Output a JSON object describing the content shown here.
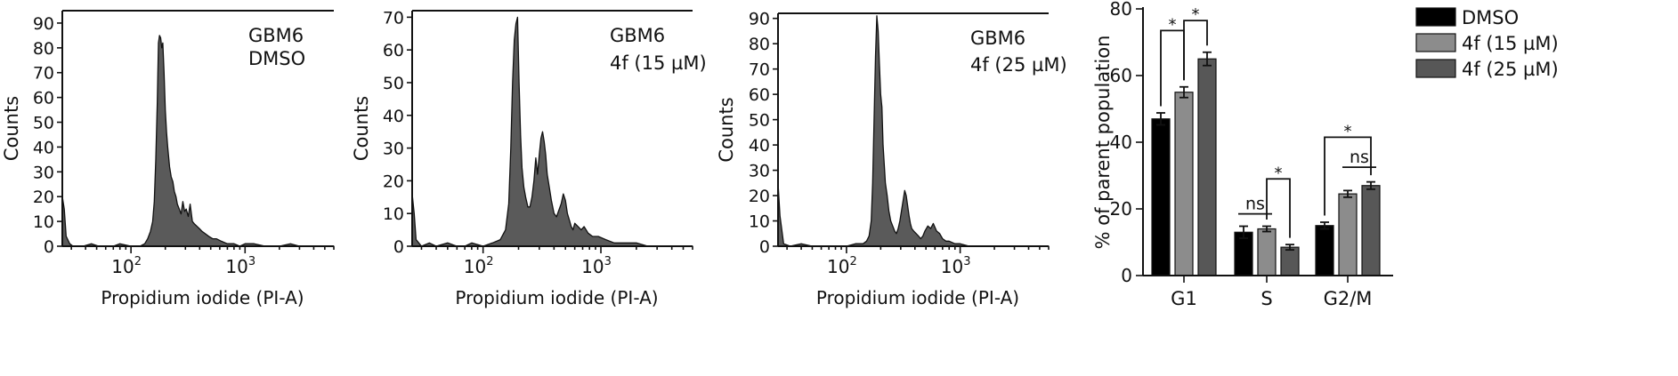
{
  "chart_data": [
    {
      "type": "area",
      "annotation": [
        "GBM6",
        "DMSO"
      ],
      "xlabel": "Propidium iodide (PI-A)",
      "ylabel": "Counts",
      "xscale": "log",
      "xlim": [
        25,
        6000
      ],
      "ylim": [
        0,
        95
      ],
      "yticks": [
        0,
        10,
        20,
        30,
        40,
        50,
        60,
        70,
        80,
        90
      ],
      "xticks": [
        {
          "value": 100,
          "base": "10",
          "exp": "2"
        },
        {
          "value": 1000,
          "base": "10",
          "exp": "3"
        }
      ],
      "x": [
        25,
        26,
        27,
        29,
        31,
        33,
        38,
        45,
        52,
        60,
        70,
        80,
        100,
        120,
        132,
        140,
        148,
        155,
        160,
        165,
        170,
        174,
        178,
        182,
        186,
        190,
        195,
        200,
        205,
        210,
        218,
        225,
        233,
        240,
        248,
        255,
        265,
        275,
        285,
        295,
        305,
        318,
        330,
        345,
        360,
        380,
        400,
        420,
        450,
        480,
        520,
        560,
        620,
        700,
        800,
        900,
        1000,
        1200,
        1500,
        2000,
        2500,
        3000,
        4000,
        5000,
        6000
      ],
      "y": [
        20,
        15,
        4,
        1,
        0,
        0,
        0,
        1,
        0,
        0,
        0,
        1,
        0,
        0,
        1,
        3,
        6,
        10,
        18,
        35,
        58,
        82,
        85,
        84,
        80,
        82,
        70,
        55,
        46,
        40,
        32,
        28,
        26,
        22,
        20,
        17,
        15,
        13,
        18,
        14,
        15,
        12,
        17,
        10,
        9,
        8,
        7,
        6,
        5,
        4,
        3,
        3,
        2,
        1,
        1,
        0,
        1,
        1,
        0,
        0,
        1,
        0,
        0,
        0,
        0
      ]
    },
    {
      "type": "area",
      "annotation": [
        "GBM6",
        "4f (15 µM)"
      ],
      "xlabel": "Propidium iodide (PI-A)",
      "ylabel": "Counts",
      "xscale": "log",
      "xlim": [
        25,
        6000
      ],
      "ylim": [
        0,
        72
      ],
      "yticks": [
        0,
        10,
        20,
        30,
        40,
        50,
        60,
        70
      ],
      "xticks": [
        {
          "value": 100,
          "base": "10",
          "exp": "2"
        },
        {
          "value": 1000,
          "base": "10",
          "exp": "3"
        }
      ],
      "x": [
        25,
        26,
        27,
        30,
        35,
        40,
        50,
        60,
        70,
        80,
        100,
        120,
        140,
        155,
        165,
        172,
        178,
        184,
        190,
        196,
        202,
        208,
        214,
        222,
        230,
        240,
        250,
        260,
        270,
        280,
        290,
        300,
        310,
        320,
        330,
        340,
        350,
        365,
        380,
        400,
        420,
        440,
        460,
        480,
        500,
        520,
        540,
        560,
        580,
        600,
        640,
        680,
        720,
        780,
        850,
        950,
        1100,
        1300,
        1600,
        2000,
        2500,
        3000,
        4000,
        5000,
        6000
      ],
      "y": [
        16,
        10,
        2,
        0,
        1,
        0,
        1,
        0,
        0,
        1,
        0,
        1,
        2,
        5,
        13,
        30,
        50,
        63,
        68,
        70,
        50,
        34,
        24,
        18,
        15,
        12,
        12,
        15,
        20,
        27,
        22,
        28,
        33,
        35,
        32,
        28,
        22,
        18,
        14,
        10,
        9,
        11,
        13,
        16,
        14,
        10,
        8,
        6,
        5,
        7,
        6,
        5,
        6,
        4,
        3,
        3,
        2,
        1,
        1,
        1,
        0,
        0,
        0,
        0,
        0
      ]
    },
    {
      "type": "area",
      "annotation": [
        "GBM6",
        "4f (25 µM)"
      ],
      "xlabel": "Propidium iodide (PI-A)",
      "ylabel": "Counts",
      "xscale": "log",
      "xlim": [
        25,
        6000
      ],
      "ylim": [
        0,
        92
      ],
      "yticks": [
        0,
        10,
        20,
        30,
        40,
        50,
        60,
        70,
        80,
        90
      ],
      "xticks": [
        {
          "value": 100,
          "base": "10",
          "exp": "2"
        },
        {
          "value": 1000,
          "base": "10",
          "exp": "3"
        }
      ],
      "x": [
        25,
        26,
        28,
        32,
        40,
        50,
        60,
        80,
        100,
        120,
        140,
        150,
        158,
        165,
        170,
        175,
        180,
        185,
        190,
        195,
        200,
        205,
        210,
        215,
        220,
        228,
        236,
        245,
        255,
        265,
        275,
        285,
        295,
        305,
        315,
        325,
        335,
        345,
        355,
        365,
        375,
        390,
        410,
        430,
        450,
        470,
        490,
        520,
        550,
        580,
        620,
        660,
        700,
        750,
        800,
        900,
        1000,
        1200,
        1500,
        2000,
        2500,
        3000,
        4000,
        5000,
        6000
      ],
      "y": [
        25,
        12,
        1,
        0,
        1,
        0,
        0,
        0,
        0,
        1,
        1,
        2,
        4,
        10,
        25,
        50,
        75,
        91,
        85,
        72,
        60,
        55,
        40,
        32,
        25,
        20,
        14,
        10,
        8,
        6,
        5,
        7,
        10,
        14,
        18,
        22,
        20,
        16,
        12,
        9,
        7,
        6,
        5,
        4,
        3,
        4,
        6,
        8,
        7,
        9,
        6,
        5,
        3,
        2,
        2,
        1,
        1,
        0,
        0,
        0,
        0,
        0,
        0,
        0,
        0
      ]
    },
    {
      "type": "bar",
      "categories": [
        "G1",
        "S",
        "G2/M"
      ],
      "ylabel": "% of parent population",
      "ylim": [
        0,
        80
      ],
      "yticks": [
        0,
        20,
        40,
        60,
        80
      ],
      "series": [
        {
          "name": "DMSO",
          "color": "#000000",
          "values": [
            47,
            13,
            15
          ],
          "errors": [
            1.8,
            1.8,
            1.0
          ]
        },
        {
          "name": "4f (15 µM)",
          "color": "#8c8c8c",
          "values": [
            55,
            14,
            24.5
          ],
          "errors": [
            1.6,
            0.8,
            1.0
          ]
        },
        {
          "name": "4f (25 µM)",
          "color": "#575757",
          "values": [
            65,
            8.5,
            27
          ],
          "errors": [
            2.0,
            0.8,
            1.1
          ]
        }
      ],
      "significance": [
        {
          "category": "G1",
          "from": 0,
          "to": 1,
          "label": "*"
        },
        {
          "category": "G1",
          "from": 1,
          "to": 2,
          "label": "*"
        },
        {
          "category": "S",
          "from": 0,
          "to": 1,
          "label": "ns"
        },
        {
          "category": "S",
          "from": 1,
          "to": 2,
          "label": "*"
        },
        {
          "category": "G2/M",
          "from": 0,
          "to": 2,
          "label": "*"
        },
        {
          "category": "G2/M",
          "from": 1,
          "to": 2,
          "label": "ns"
        }
      ],
      "legend_position": "top-right"
    }
  ]
}
